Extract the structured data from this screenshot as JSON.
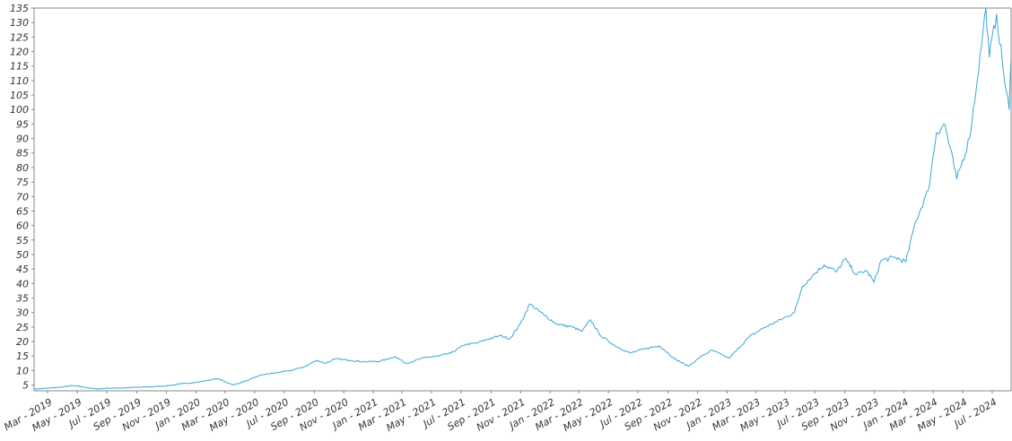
{
  "colors": {
    "line": "#3aa7d6",
    "axis": "#888888",
    "text": "#333333",
    "background": "#ffffff"
  },
  "chart_data": {
    "type": "line",
    "title": "",
    "xlabel": "",
    "ylabel": "",
    "grid": false,
    "legend": "none",
    "xlim": [
      "2019-02-01",
      "2024-08-09"
    ],
    "ylim": [
      3,
      135
    ],
    "y_ticks": [
      5,
      10,
      15,
      20,
      25,
      30,
      35,
      40,
      45,
      50,
      55,
      60,
      65,
      70,
      75,
      80,
      85,
      90,
      95,
      100,
      105,
      110,
      115,
      120,
      125,
      130,
      135
    ],
    "x_ticks": [
      {
        "date": "2019-03-01",
        "label": "Mar - 2019"
      },
      {
        "date": "2019-05-01",
        "label": "May - 2019"
      },
      {
        "date": "2019-07-01",
        "label": "Jul - 2019"
      },
      {
        "date": "2019-09-01",
        "label": "Sep - 2019"
      },
      {
        "date": "2019-11-01",
        "label": "Nov - 2019"
      },
      {
        "date": "2020-01-01",
        "label": "Jan - 2020"
      },
      {
        "date": "2020-03-01",
        "label": "Mar - 2020"
      },
      {
        "date": "2020-05-01",
        "label": "May - 2020"
      },
      {
        "date": "2020-07-01",
        "label": "Jul - 2020"
      },
      {
        "date": "2020-09-01",
        "label": "Sep - 2020"
      },
      {
        "date": "2020-11-01",
        "label": "Nov - 2020"
      },
      {
        "date": "2021-01-01",
        "label": "Jan - 2021"
      },
      {
        "date": "2021-03-01",
        "label": "Mar - 2021"
      },
      {
        "date": "2021-05-01",
        "label": "May - 2021"
      },
      {
        "date": "2021-07-01",
        "label": "Jul - 2021"
      },
      {
        "date": "2021-09-01",
        "label": "Sep - 2021"
      },
      {
        "date": "2021-11-01",
        "label": "Nov - 2021"
      },
      {
        "date": "2022-01-01",
        "label": "Jan - 2022"
      },
      {
        "date": "2022-03-01",
        "label": "Mar - 2022"
      },
      {
        "date": "2022-05-01",
        "label": "May - 2022"
      },
      {
        "date": "2022-07-01",
        "label": "Jul - 2022"
      },
      {
        "date": "2022-09-01",
        "label": "Sep - 2022"
      },
      {
        "date": "2022-11-01",
        "label": "Nov - 2022"
      },
      {
        "date": "2023-01-01",
        "label": "Jan - 2023"
      },
      {
        "date": "2023-03-01",
        "label": "Mar - 2023"
      },
      {
        "date": "2023-05-01",
        "label": "May - 2023"
      },
      {
        "date": "2023-07-01",
        "label": "Jul - 2023"
      },
      {
        "date": "2023-09-01",
        "label": "Sep - 2023"
      },
      {
        "date": "2023-11-01",
        "label": "Nov - 2023"
      },
      {
        "date": "2024-01-01",
        "label": "Jan - 2024"
      },
      {
        "date": "2024-03-01",
        "label": "Mar - 2024"
      },
      {
        "date": "2024-05-01",
        "label": "May - 2024"
      },
      {
        "date": "2024-07-01",
        "label": "Jul - 2024"
      }
    ],
    "series": [
      {
        "points": [
          [
            "2019-02-01",
            3.6
          ],
          [
            "2019-03-01",
            3.9
          ],
          [
            "2019-04-01",
            4.3
          ],
          [
            "2019-04-20",
            4.8
          ],
          [
            "2019-05-15",
            4.3
          ],
          [
            "2019-06-10",
            3.6
          ],
          [
            "2019-07-01",
            3.9
          ],
          [
            "2019-08-01",
            4.0
          ],
          [
            "2019-09-01",
            4.2
          ],
          [
            "2019-10-01",
            4.4
          ],
          [
            "2019-11-01",
            4.7
          ],
          [
            "2019-12-01",
            5.4
          ],
          [
            "2020-01-01",
            5.9
          ],
          [
            "2020-02-15",
            7.2
          ],
          [
            "2020-03-18",
            5.0
          ],
          [
            "2020-04-15",
            6.5
          ],
          [
            "2020-05-15",
            8.5
          ],
          [
            "2020-06-15",
            9.2
          ],
          [
            "2020-07-15",
            10.0
          ],
          [
            "2020-08-15",
            11.5
          ],
          [
            "2020-09-05",
            13.5
          ],
          [
            "2020-09-25",
            12.5
          ],
          [
            "2020-10-15",
            14.0
          ],
          [
            "2020-11-15",
            13.5
          ],
          [
            "2020-12-15",
            13.0
          ],
          [
            "2021-01-15",
            13.2
          ],
          [
            "2021-02-15",
            14.8
          ],
          [
            "2021-03-10",
            12.4
          ],
          [
            "2021-04-15",
            14.4
          ],
          [
            "2021-05-15",
            15.0
          ],
          [
            "2021-06-10",
            16.0
          ],
          [
            "2021-07-10",
            19.0
          ],
          [
            "2021-08-01",
            19.4
          ],
          [
            "2021-08-25",
            20.8
          ],
          [
            "2021-09-20",
            22.0
          ],
          [
            "2021-10-10",
            21.0
          ],
          [
            "2021-10-31",
            26.0
          ],
          [
            "2021-11-20",
            33.0
          ],
          [
            "2021-12-20",
            29.0
          ],
          [
            "2022-01-15",
            26.0
          ],
          [
            "2022-02-15",
            25.0
          ],
          [
            "2022-03-08",
            23.5
          ],
          [
            "2022-03-25",
            27.5
          ],
          [
            "2022-04-15",
            22.0
          ],
          [
            "2022-05-15",
            18.5
          ],
          [
            "2022-06-15",
            16.0
          ],
          [
            "2022-07-15",
            17.5
          ],
          [
            "2022-08-15",
            18.5
          ],
          [
            "2022-09-15",
            14.0
          ],
          [
            "2022-10-13",
            11.5
          ],
          [
            "2022-11-10",
            15.0
          ],
          [
            "2022-12-01",
            17.0
          ],
          [
            "2023-01-05",
            14.2
          ],
          [
            "2023-02-15",
            21.5
          ],
          [
            "2023-03-15",
            24.5
          ],
          [
            "2023-04-15",
            27.0
          ],
          [
            "2023-05-20",
            30.0
          ],
          [
            "2023-06-05",
            39.0
          ],
          [
            "2023-06-25",
            42.5
          ],
          [
            "2023-07-20",
            46.5
          ],
          [
            "2023-08-15",
            44.0
          ],
          [
            "2023-09-01",
            48.5
          ],
          [
            "2023-09-25",
            43.0
          ],
          [
            "2023-10-15",
            44.5
          ],
          [
            "2023-10-31",
            40.5
          ],
          [
            "2023-11-15",
            48.0
          ],
          [
            "2023-12-15",
            49.0
          ],
          [
            "2024-01-05",
            47.5
          ],
          [
            "2024-01-25",
            61.5
          ],
          [
            "2024-02-20",
            72.0
          ],
          [
            "2024-03-08",
            92.0
          ],
          [
            "2024-03-25",
            95.0
          ],
          [
            "2024-04-19",
            76.0
          ],
          [
            "2024-05-15",
            90.0
          ],
          [
            "2024-05-31",
            110.0
          ],
          [
            "2024-06-18",
            135.0
          ],
          [
            "2024-06-25",
            118.0
          ],
          [
            "2024-07-10",
            133.0
          ],
          [
            "2024-07-25",
            112.0
          ],
          [
            "2024-08-05",
            100.0
          ],
          [
            "2024-08-09",
            118.0
          ]
        ]
      }
    ]
  }
}
